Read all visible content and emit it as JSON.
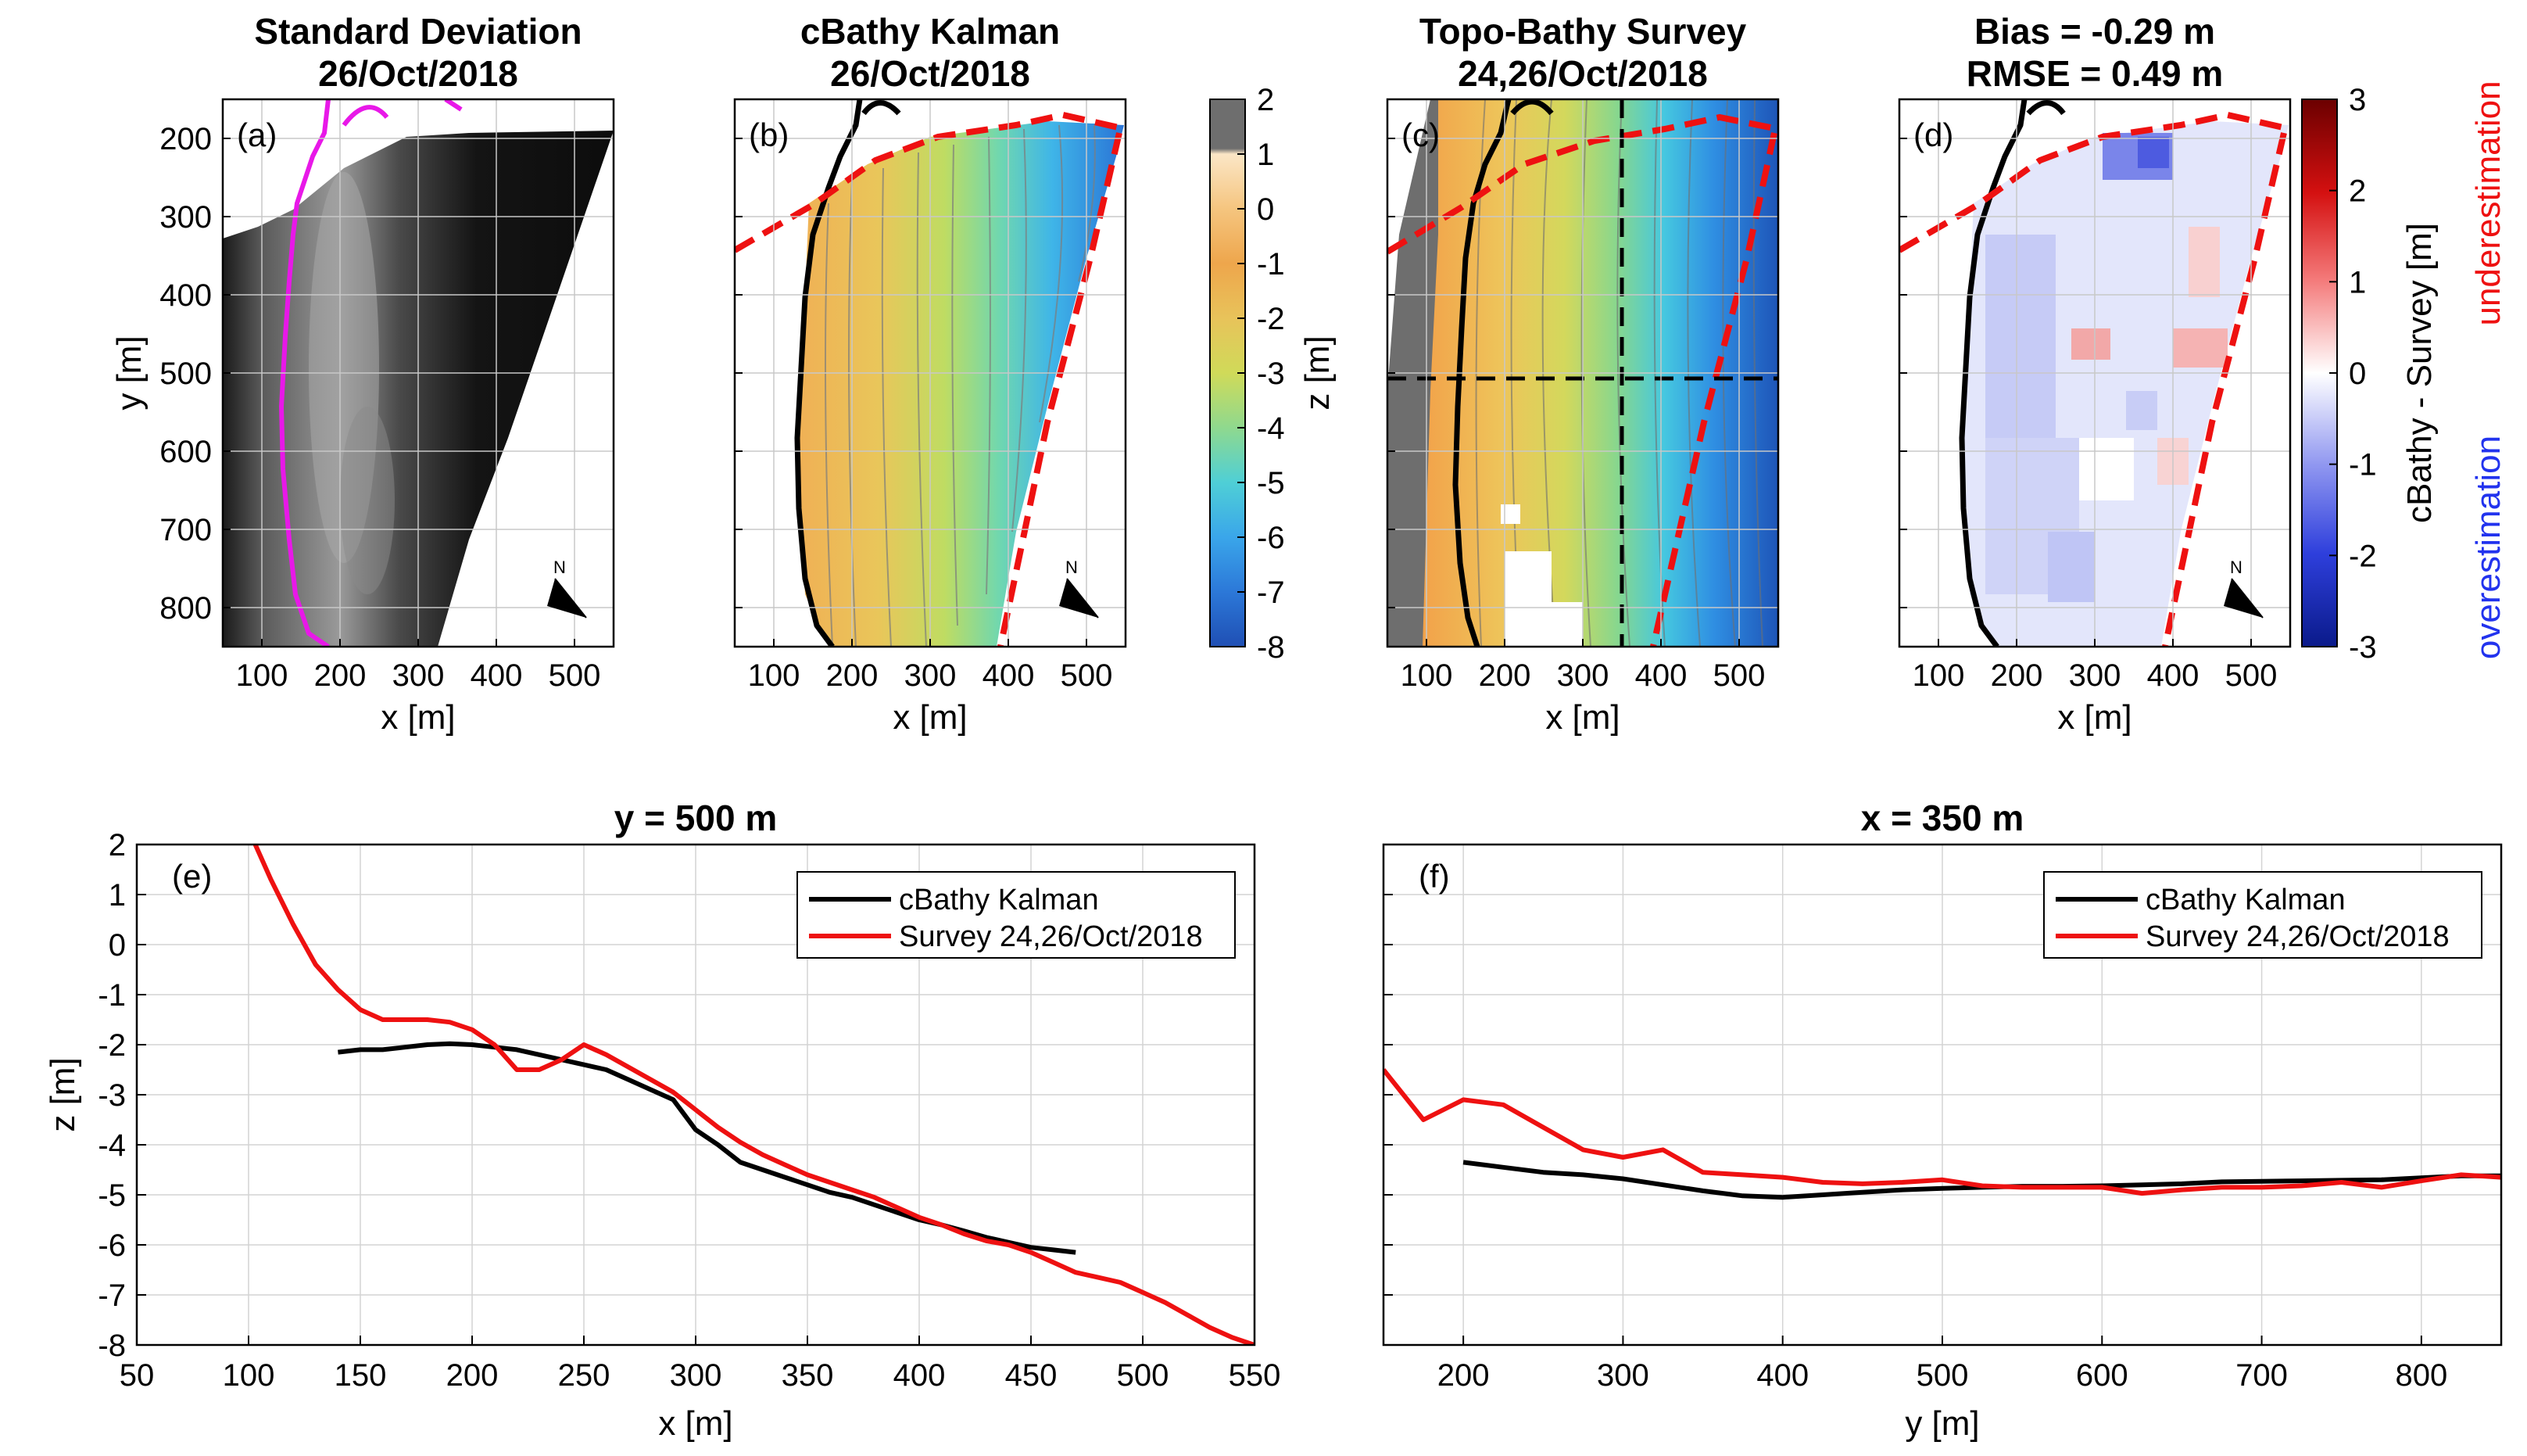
{
  "figure": {
    "cbar_z": {
      "ticks": [
        "2",
        "1",
        "0",
        "-1",
        "-2",
        "-3",
        "-4",
        "-5",
        "-6",
        "-7",
        "-8"
      ],
      "label": "z [m]"
    },
    "cbar_diff": {
      "ticks": [
        "3",
        "2",
        "1",
        "0",
        "-1",
        "-2",
        "-3"
      ],
      "label": "cBathy - Survey [m]",
      "side_top": "underestimation",
      "side_bottom": "overestimation"
    },
    "compass_label": "N"
  },
  "chart_data": [
    {
      "type": "heatmap",
      "panel": "(a)",
      "title": [
        "Standard Deviation",
        "26/Oct/2018"
      ],
      "xlabel": "x [m]",
      "ylabel": "y [m]",
      "xlim": [
        50,
        550
      ],
      "ylim": [
        150,
        850
      ],
      "y_reversed": true,
      "xticks": [
        "100",
        "200",
        "300",
        "400",
        "500"
      ],
      "yticks": [
        "200",
        "300",
        "400",
        "500",
        "600",
        "700",
        "800"
      ],
      "colormap": "gray",
      "overlay": "magenta shoreline contour",
      "grid": true
    },
    {
      "type": "heatmap",
      "panel": "(b)",
      "title": [
        "cBathy Kalman",
        "26/Oct/2018"
      ],
      "xlabel": "x [m]",
      "xlim": [
        50,
        550
      ],
      "ylim": [
        150,
        850
      ],
      "y_reversed": true,
      "xticks": [
        "100",
        "200",
        "300",
        "400",
        "500"
      ],
      "colormap": "parula",
      "clim": [
        -8,
        2
      ],
      "overlay": "black shoreline, red dashed domain boundary",
      "grid": true
    },
    {
      "type": "heatmap",
      "panel": "(c)",
      "title": [
        "Topo-Bathy Survey",
        "24,26/Oct/2018"
      ],
      "xlabel": "x [m]",
      "xlim": [
        50,
        550
      ],
      "ylim": [
        150,
        850
      ],
      "y_reversed": true,
      "xticks": [
        "100",
        "200",
        "300",
        "400",
        "500"
      ],
      "colormap": "parula",
      "clim": [
        -8,
        2
      ],
      "transects": {
        "x": 350,
        "y": 500
      },
      "grid": true
    },
    {
      "type": "heatmap",
      "panel": "(d)",
      "title": [
        "Bias = -0.29 m",
        "RMSE = 0.49 m"
      ],
      "xlabel": "x [m]",
      "xlim": [
        50,
        550
      ],
      "ylim": [
        150,
        850
      ],
      "y_reversed": true,
      "xticks": [
        "100",
        "200",
        "300",
        "400",
        "500"
      ],
      "colormap": "blue-white-red",
      "clim": [
        -3,
        3
      ],
      "bias_m": -0.29,
      "rmse_m": 0.49,
      "grid": true
    },
    {
      "type": "line",
      "panel": "(e)",
      "title": "y = 500 m",
      "xlabel": "x [m]",
      "ylabel": "z [m]",
      "xlim": [
        50,
        550
      ],
      "ylim": [
        -8,
        2
      ],
      "xticks": [
        "50",
        "100",
        "150",
        "200",
        "250",
        "300",
        "350",
        "400",
        "450",
        "500",
        "550"
      ],
      "yticks": [
        "2",
        "1",
        "0",
        "-1",
        "-2",
        "-3",
        "-4",
        "-5",
        "-6",
        "-7",
        "-8"
      ],
      "legend": "top-right",
      "grid": true,
      "series": [
        {
          "name": "cBathy Kalman",
          "color": "#000000",
          "x": [
            140,
            150,
            160,
            170,
            180,
            190,
            200,
            210,
            220,
            230,
            240,
            250,
            260,
            270,
            280,
            290,
            300,
            310,
            320,
            330,
            340,
            350,
            360,
            370,
            380,
            390,
            400,
            410,
            420,
            430,
            440,
            450,
            460,
            470
          ],
          "y": [
            -2.15,
            -2.1,
            -2.1,
            -2.05,
            -2.0,
            -1.98,
            -2.0,
            -2.05,
            -2.1,
            -2.2,
            -2.3,
            -2.4,
            -2.5,
            -2.7,
            -2.9,
            -3.1,
            -3.7,
            -4.0,
            -4.35,
            -4.5,
            -4.65,
            -4.8,
            -4.95,
            -5.05,
            -5.2,
            -5.35,
            -5.5,
            -5.6,
            -5.72,
            -5.85,
            -5.95,
            -6.05,
            -6.1,
            -6.15
          ]
        },
        {
          "name": "Survey 24,26/Oct/2018",
          "color": "#ee1111",
          "x": [
            100,
            110,
            120,
            130,
            140,
            150,
            160,
            170,
            180,
            190,
            200,
            210,
            220,
            230,
            240,
            250,
            260,
            270,
            280,
            290,
            300,
            310,
            320,
            330,
            340,
            350,
            360,
            370,
            380,
            390,
            400,
            410,
            420,
            430,
            440,
            450,
            460,
            470,
            480,
            490,
            500,
            510,
            520,
            530,
            540,
            550
          ],
          "y": [
            2.3,
            1.3,
            0.4,
            -0.4,
            -0.9,
            -1.3,
            -1.5,
            -1.5,
            -1.5,
            -1.55,
            -1.7,
            -2.0,
            -2.5,
            -2.5,
            -2.3,
            -2.0,
            -2.2,
            -2.45,
            -2.7,
            -2.95,
            -3.3,
            -3.65,
            -3.95,
            -4.2,
            -4.4,
            -4.6,
            -4.75,
            -4.9,
            -5.05,
            -5.25,
            -5.45,
            -5.6,
            -5.78,
            -5.92,
            -6.0,
            -6.15,
            -6.35,
            -6.55,
            -6.65,
            -6.75,
            -6.95,
            -7.15,
            -7.4,
            -7.65,
            -7.85,
            -8.0
          ]
        }
      ]
    },
    {
      "type": "line",
      "panel": "(f)",
      "title": "x = 350 m",
      "xlabel": "y [m]",
      "xlim": [
        150,
        850
      ],
      "ylim": [
        -8,
        2
      ],
      "xticks": [
        "200",
        "300",
        "400",
        "500",
        "600",
        "700",
        "800"
      ],
      "legend": "top-right",
      "grid": true,
      "series": [
        {
          "name": "cBathy Kalman",
          "color": "#000000",
          "x": [
            200,
            225,
            250,
            275,
            300,
            325,
            350,
            375,
            400,
            425,
            450,
            475,
            500,
            525,
            550,
            575,
            600,
            625,
            650,
            675,
            700,
            725,
            750,
            775,
            800,
            825,
            850
          ],
          "y": [
            -4.35,
            -4.45,
            -4.55,
            -4.6,
            -4.68,
            -4.8,
            -4.92,
            -5.02,
            -5.05,
            -5.0,
            -4.95,
            -4.9,
            -4.87,
            -4.85,
            -4.83,
            -4.83,
            -4.82,
            -4.8,
            -4.78,
            -4.74,
            -4.73,
            -4.72,
            -4.71,
            -4.7,
            -4.66,
            -4.62,
            -4.62
          ]
        },
        {
          "name": "Survey 24,26/Oct/2018",
          "color": "#ee1111",
          "x": [
            150,
            175,
            200,
            225,
            250,
            275,
            300,
            325,
            350,
            375,
            400,
            425,
            450,
            475,
            500,
            525,
            550,
            575,
            600,
            625,
            650,
            675,
            700,
            725,
            750,
            775,
            800,
            825,
            850
          ],
          "y": [
            -2.5,
            -3.5,
            -3.1,
            -3.2,
            -3.65,
            -4.1,
            -4.25,
            -4.1,
            -4.55,
            -4.6,
            -4.65,
            -4.75,
            -4.78,
            -4.75,
            -4.7,
            -4.82,
            -4.85,
            -4.85,
            -4.85,
            -4.97,
            -4.9,
            -4.85,
            -4.85,
            -4.82,
            -4.75,
            -4.85,
            -4.72,
            -4.6,
            -4.65
          ]
        }
      ]
    }
  ]
}
